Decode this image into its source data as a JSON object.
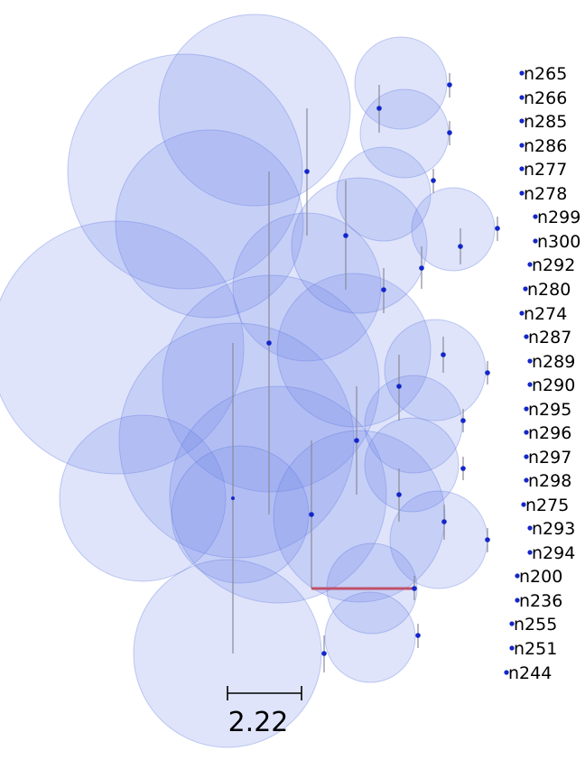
{
  "tree": {
    "leaves": [
      "n265",
      "n266",
      "n285",
      "n286",
      "n277",
      "n278",
      "n299",
      "n300",
      "n292",
      "n280",
      "n274",
      "n287",
      "n289",
      "n290",
      "n295",
      "n296",
      "n297",
      "n298",
      "n275",
      "n293",
      "n294",
      "n200",
      "n236",
      "n255",
      "n251",
      "n244"
    ],
    "highlight_branch_leaves": [
      "n200",
      "n236"
    ],
    "scale_bar": {
      "label": "2.22"
    }
  },
  "colors": {
    "bubble": "#6f86e6",
    "branch_gradient_start": "#8aa0ff",
    "branch_gradient_end": "#22ff22",
    "highlight_branch": "#c0506a",
    "node": "#1326c9",
    "vertical_line": "#8a8a9a"
  }
}
